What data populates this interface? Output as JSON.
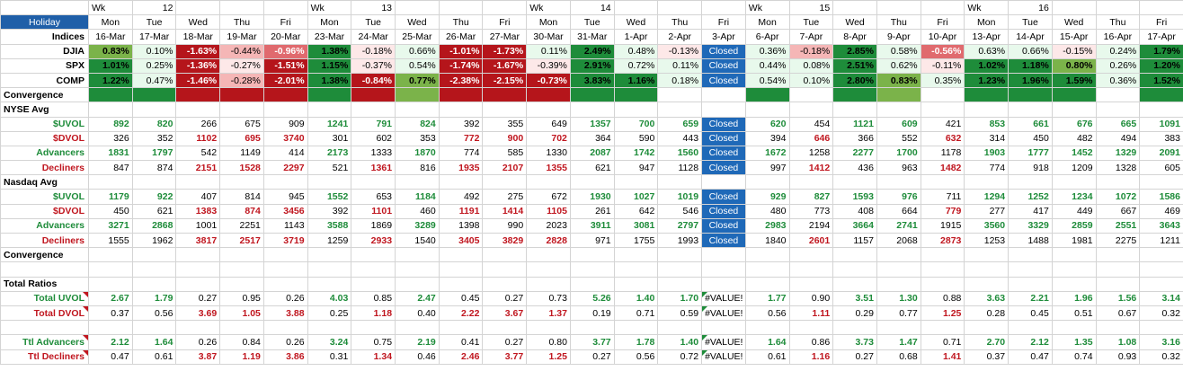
{
  "colors": {
    "holiday": "#1f5fa8",
    "closed": "#1f69b8",
    "green_text": "#1e8c3a",
    "red_text": "#c0161f",
    "pos_strong": "#1e8c3a",
    "pos_light": "#e8f9ec",
    "pos_olive": "#7bb34a",
    "neg_dark": "#b5151b",
    "neg_mid": "#e06a6e",
    "neg_light": "#f5b6b6",
    "neg_pale": "#fde8e8"
  },
  "header": {
    "holiday_label": "Holiday",
    "weeks": [
      {
        "label": "Wk",
        "num": "12"
      },
      {
        "label": "Wk",
        "num": "13"
      },
      {
        "label": "Wk",
        "num": "14"
      },
      {
        "label": "Wk",
        "num": "15"
      },
      {
        "label": "Wk",
        "num": "16"
      }
    ],
    "days": [
      "Mon",
      "Tue",
      "Wed",
      "Thu",
      "Fri",
      "Mon",
      "Tue",
      "Wed",
      "Thu",
      "Fri",
      "Mon",
      "Tue",
      "Wed",
      "Thu",
      "Fri",
      "Mon",
      "Tue",
      "Wed",
      "Thu",
      "Fri",
      "Mon",
      "Tue",
      "Wed",
      "Thu",
      "Fri"
    ],
    "dates_label": "Indices",
    "dates": [
      "16-Mar",
      "17-Mar",
      "18-Mar",
      "19-Mar",
      "20-Mar",
      "23-Mar",
      "24-Mar",
      "25-Mar",
      "26-Mar",
      "27-Mar",
      "30-Mar",
      "31-Mar",
      "1-Apr",
      "2-Apr",
      "3-Apr",
      "6-Apr",
      "7-Apr",
      "8-Apr",
      "9-Apr",
      "10-Apr",
      "13-Apr",
      "14-Apr",
      "15-Apr",
      "16-Apr",
      "17-Apr"
    ]
  },
  "closed_label": "Closed",
  "indices": [
    {
      "label": "DJIA",
      "values": [
        "0.83%",
        "0.10%",
        "-1.63%",
        "-0.44%",
        "-0.96%",
        "1.38%",
        "-0.18%",
        "0.66%",
        "-1.01%",
        "-1.73%",
        "0.11%",
        "2.49%",
        "0.48%",
        "-0.13%",
        "Closed",
        "0.36%",
        "-0.18%",
        "2.85%",
        "0.58%",
        "-0.56%",
        "0.63%",
        "0.66%",
        "-0.15%",
        "0.24%",
        "1.79%"
      ],
      "styles": [
        "olive",
        "pl",
        "nd",
        "nl",
        "nm",
        "ps",
        "np",
        "pl",
        "nd",
        "nd",
        "pl",
        "ps",
        "pl",
        "np",
        "closed",
        "pl",
        "nl",
        "ps",
        "pl",
        "nm",
        "pl",
        "pl",
        "np",
        "pl",
        "ps"
      ]
    },
    {
      "label": "SPX",
      "values": [
        "1.01%",
        "0.25%",
        "-1.36%",
        "-0.27%",
        "-1.51%",
        "1.15%",
        "-0.37%",
        "0.54%",
        "-1.74%",
        "-1.67%",
        "-0.39%",
        "2.91%",
        "0.72%",
        "0.11%",
        "Closed",
        "0.44%",
        "0.08%",
        "2.51%",
        "0.62%",
        "-0.11%",
        "1.02%",
        "1.18%",
        "0.80%",
        "0.26%",
        "1.20%"
      ],
      "styles": [
        "ps",
        "pl",
        "nd",
        "np",
        "nd",
        "ps",
        "np",
        "pl",
        "nd",
        "nd",
        "np",
        "ps",
        "pl",
        "pl",
        "closed",
        "pl",
        "pl",
        "ps",
        "pl",
        "np",
        "ps",
        "ps",
        "olive",
        "pl",
        "ps"
      ]
    },
    {
      "label": "COMP",
      "values": [
        "1.22%",
        "0.47%",
        "-1.46%",
        "-0.28%",
        "-2.01%",
        "1.38%",
        "-0.84%",
        "0.77%",
        "-2.38%",
        "-2.15%",
        "-0.73%",
        "3.83%",
        "1.16%",
        "0.18%",
        "Closed",
        "0.54%",
        "0.10%",
        "2.80%",
        "0.83%",
        "0.35%",
        "1.23%",
        "1.96%",
        "1.59%",
        "0.36%",
        "1.52%"
      ],
      "styles": [
        "ps",
        "pl",
        "nd",
        "nl",
        "nd",
        "ps",
        "nd",
        "olive",
        "nd",
        "nd",
        "nd",
        "ps",
        "ps",
        "pl",
        "closed",
        "pl",
        "pl",
        "ps",
        "olive",
        "pl",
        "ps",
        "ps",
        "ps",
        "pl",
        "ps"
      ]
    }
  ],
  "convergence_label": "Convergence",
  "convergence_styles": [
    "ps",
    "ps",
    "nd",
    "nd",
    "nd",
    "ps",
    "nd",
    "olive",
    "nd",
    "nd",
    "nd",
    "ps",
    "ps",
    "e",
    "e",
    "ps",
    "e",
    "ps",
    "olive",
    "e",
    "ps",
    "ps",
    "ps",
    "e",
    "ps"
  ],
  "nyse": {
    "title": "NYSE Avg",
    "rows": [
      {
        "label": "$UVOL",
        "lc": "g",
        "values": [
          "892",
          "820",
          "266",
          "675",
          "909",
          "1241",
          "791",
          "824",
          "392",
          "355",
          "649",
          "1357",
          "700",
          "659",
          "Closed",
          "620",
          "454",
          "1121",
          "609",
          "421",
          "853",
          "661",
          "676",
          "665",
          "1091"
        ],
        "cls": [
          "g",
          "g",
          "",
          "",
          "",
          "g",
          "g",
          "g",
          "",
          "",
          "",
          "g",
          "g",
          "g",
          "closed",
          "g",
          "",
          "g",
          "g",
          "",
          "g",
          "g",
          "g",
          "g",
          "g"
        ]
      },
      {
        "label": "$DVOL",
        "lc": "r",
        "values": [
          "326",
          "352",
          "1102",
          "695",
          "3740",
          "301",
          "602",
          "353",
          "772",
          "900",
          "702",
          "364",
          "590",
          "443",
          "Closed",
          "394",
          "646",
          "366",
          "552",
          "632",
          "314",
          "450",
          "482",
          "494",
          "383"
        ],
        "cls": [
          "",
          "",
          "r",
          "r",
          "r",
          "",
          "",
          "",
          "r",
          "r",
          "r",
          "",
          "",
          "",
          "closed",
          "",
          "r",
          "",
          "",
          "r",
          "",
          "",
          "",
          "",
          ""
        ]
      },
      {
        "label": "Advancers",
        "lc": "g",
        "values": [
          "1831",
          "1797",
          "542",
          "1149",
          "414",
          "2173",
          "1333",
          "1870",
          "774",
          "585",
          "1330",
          "2087",
          "1742",
          "1560",
          "Closed",
          "1672",
          "1258",
          "2277",
          "1700",
          "1178",
          "1903",
          "1777",
          "1452",
          "1329",
          "2091"
        ],
        "cls": [
          "g",
          "g",
          "",
          "",
          "",
          "g",
          "",
          "g",
          "",
          "",
          "",
          "g",
          "g",
          "g",
          "closed",
          "g",
          "",
          "g",
          "g",
          "",
          "g",
          "g",
          "g",
          "g",
          "g"
        ]
      },
      {
        "label": "Decliners",
        "lc": "r",
        "values": [
          "847",
          "874",
          "2151",
          "1528",
          "2297",
          "521",
          "1361",
          "816",
          "1935",
          "2107",
          "1355",
          "621",
          "947",
          "1128",
          "Closed",
          "997",
          "1412",
          "436",
          "963",
          "1482",
          "774",
          "918",
          "1209",
          "1328",
          "605"
        ],
        "cls": [
          "",
          "",
          "r",
          "r",
          "r",
          "",
          "r",
          "",
          "r",
          "r",
          "r",
          "",
          "",
          "",
          "closed",
          "",
          "r",
          "",
          "",
          "r",
          "",
          "",
          "",
          "",
          ""
        ]
      }
    ]
  },
  "nasdaq": {
    "title": "Nasdaq Avg",
    "rows": [
      {
        "label": "$UVOL",
        "lc": "g",
        "values": [
          "1179",
          "922",
          "407",
          "814",
          "945",
          "1552",
          "653",
          "1184",
          "492",
          "275",
          "672",
          "1930",
          "1027",
          "1019",
          "Closed",
          "929",
          "827",
          "1593",
          "976",
          "711",
          "1294",
          "1252",
          "1234",
          "1072",
          "1586"
        ],
        "cls": [
          "g",
          "g",
          "",
          "",
          "",
          "g",
          "",
          "g",
          "",
          "",
          "",
          "g",
          "g",
          "g",
          "closed",
          "g",
          "g",
          "g",
          "g",
          "",
          "g",
          "g",
          "g",
          "g",
          "g"
        ]
      },
      {
        "label": "$DVOL",
        "lc": "r",
        "values": [
          "450",
          "621",
          "1383",
          "874",
          "3456",
          "392",
          "1101",
          "460",
          "1191",
          "1414",
          "1105",
          "261",
          "642",
          "546",
          "Closed",
          "480",
          "773",
          "408",
          "664",
          "779",
          "277",
          "417",
          "449",
          "667",
          "469"
        ],
        "cls": [
          "",
          "",
          "r",
          "r",
          "r",
          "",
          "r",
          "",
          "r",
          "r",
          "r",
          "",
          "",
          "",
          "closed",
          "",
          "",
          "",
          "",
          "r",
          "",
          "",
          "",
          "",
          ""
        ]
      },
      {
        "label": "Advancers",
        "lc": "g",
        "values": [
          "3271",
          "2868",
          "1001",
          "2251",
          "1143",
          "3588",
          "1869",
          "3289",
          "1398",
          "990",
          "2023",
          "3911",
          "3081",
          "2797",
          "Closed",
          "2983",
          "2194",
          "3664",
          "2741",
          "1915",
          "3560",
          "3329",
          "2859",
          "2551",
          "3643"
        ],
        "cls": [
          "g",
          "g",
          "",
          "",
          "",
          "g",
          "",
          "g",
          "",
          "",
          "",
          "g",
          "g",
          "g",
          "closed",
          "g",
          "",
          "g",
          "g",
          "",
          "g",
          "g",
          "g",
          "g",
          "g"
        ]
      },
      {
        "label": "Decliners",
        "lc": "r",
        "values": [
          "1555",
          "1962",
          "3817",
          "2517",
          "3719",
          "1259",
          "2933",
          "1540",
          "3405",
          "3829",
          "2828",
          "971",
          "1755",
          "1993",
          "Closed",
          "1840",
          "2601",
          "1157",
          "2068",
          "2873",
          "1253",
          "1488",
          "1981",
          "2275",
          "1211"
        ],
        "cls": [
          "",
          "",
          "r",
          "r",
          "r",
          "",
          "r",
          "",
          "r",
          "r",
          "r",
          "",
          "",
          "",
          "closed",
          "",
          "r",
          "",
          "",
          "r",
          "",
          "",
          "",
          "",
          ""
        ]
      }
    ]
  },
  "convergence2_label": "Convergence",
  "total_ratios": {
    "title": "Total Ratios",
    "rows": [
      {
        "label": "Total UVOL",
        "lc": "g",
        "values": [
          "2.67",
          "1.79",
          "0.27",
          "0.95",
          "0.26",
          "4.03",
          "0.85",
          "2.47",
          "0.45",
          "0.27",
          "0.73",
          "5.26",
          "1.40",
          "1.70",
          "#VALUE!",
          "1.77",
          "0.90",
          "3.51",
          "1.30",
          "0.88",
          "3.63",
          "2.21",
          "1.96",
          "1.56",
          "3.14"
        ],
        "cls": [
          "g",
          "g",
          "",
          "",
          "",
          "g",
          "",
          "g",
          "",
          "",
          "",
          "g",
          "g",
          "g",
          "err",
          "g",
          "",
          "g",
          "g",
          "",
          "g",
          "g",
          "g",
          "g",
          "g"
        ]
      },
      {
        "label": "Total DVOL",
        "lc": "r",
        "values": [
          "0.37",
          "0.56",
          "3.69",
          "1.05",
          "3.88",
          "0.25",
          "1.18",
          "0.40",
          "2.22",
          "3.67",
          "1.37",
          "0.19",
          "0.71",
          "0.59",
          "#VALUE!",
          "0.56",
          "1.11",
          "0.29",
          "0.77",
          "1.25",
          "0.28",
          "0.45",
          "0.51",
          "0.67",
          "0.32"
        ],
        "cls": [
          "",
          "",
          "r",
          "r",
          "r",
          "",
          "r",
          "",
          "r",
          "r",
          "r",
          "",
          "",
          "",
          "err",
          "",
          "r",
          "",
          "",
          "r",
          "",
          "",
          "",
          "",
          ""
        ]
      }
    ]
  },
  "ttl": {
    "rows": [
      {
        "label": "Ttl Advancers",
        "lc": "g",
        "values": [
          "2.12",
          "1.64",
          "0.26",
          "0.84",
          "0.26",
          "3.24",
          "0.75",
          "2.19",
          "0.41",
          "0.27",
          "0.80",
          "3.77",
          "1.78",
          "1.40",
          "#VALUE!",
          "1.64",
          "0.86",
          "3.73",
          "1.47",
          "0.71",
          "2.70",
          "2.12",
          "1.35",
          "1.08",
          "3.16"
        ],
        "cls": [
          "g",
          "g",
          "",
          "",
          "",
          "g",
          "",
          "g",
          "",
          "",
          "",
          "g",
          "g",
          "g",
          "err",
          "g",
          "",
          "g",
          "g",
          "",
          "g",
          "g",
          "g",
          "g",
          "g"
        ]
      },
      {
        "label": "Ttl Decliners",
        "lc": "r",
        "values": [
          "0.47",
          "0.61",
          "3.87",
          "1.19",
          "3.86",
          "0.31",
          "1.34",
          "0.46",
          "2.46",
          "3.77",
          "1.25",
          "0.27",
          "0.56",
          "0.72",
          "#VALUE!",
          "0.61",
          "1.16",
          "0.27",
          "0.68",
          "1.41",
          "0.37",
          "0.47",
          "0.74",
          "0.93",
          "0.32"
        ],
        "cls": [
          "",
          "",
          "r",
          "r",
          "r",
          "",
          "r",
          "",
          "r",
          "r",
          "r",
          "",
          "",
          "",
          "err",
          "",
          "r",
          "",
          "",
          "r",
          "",
          "",
          "",
          "",
          ""
        ]
      }
    ]
  }
}
